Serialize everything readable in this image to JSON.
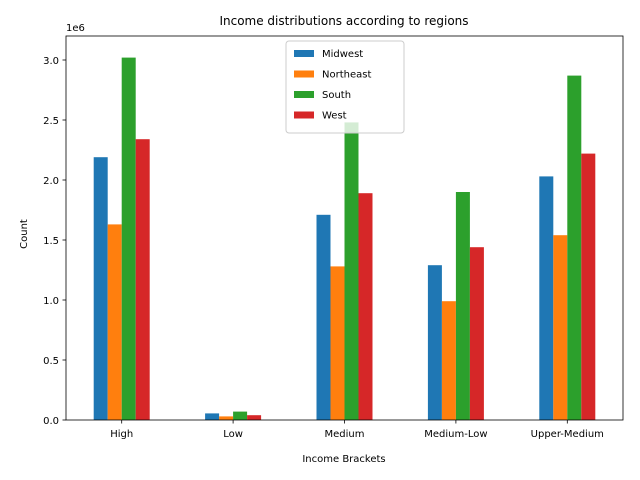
{
  "chart_data": {
    "type": "bar",
    "title": "Income distributions according to regions",
    "xlabel": "Income Brackets",
    "ylabel": "Count",
    "y_offset_label": "1e6",
    "categories": [
      "High",
      "Low",
      "Medium",
      "Medium-Low",
      "Upper-Medium"
    ],
    "ylim": [
      0,
      3200000
    ],
    "yticks": [
      0,
      500000,
      1000000,
      1500000,
      2000000,
      2500000,
      3000000
    ],
    "ytick_labels": [
      "0.0",
      "0.5",
      "1.0",
      "1.5",
      "2.0",
      "2.5",
      "3.0"
    ],
    "grid": false,
    "legend_position": "top-center",
    "series": [
      {
        "name": "Midwest",
        "color": "#1f77b4",
        "values": [
          2190000,
          55000,
          1710000,
          1290000,
          2030000
        ]
      },
      {
        "name": "Northeast",
        "color": "#ff7f0e",
        "values": [
          1630000,
          30000,
          1280000,
          990000,
          1540000
        ]
      },
      {
        "name": "South",
        "color": "#2ca02c",
        "values": [
          3020000,
          70000,
          2480000,
          1900000,
          2870000
        ]
      },
      {
        "name": "West",
        "color": "#d62728",
        "values": [
          2340000,
          40000,
          1890000,
          1440000,
          2220000
        ]
      }
    ]
  }
}
